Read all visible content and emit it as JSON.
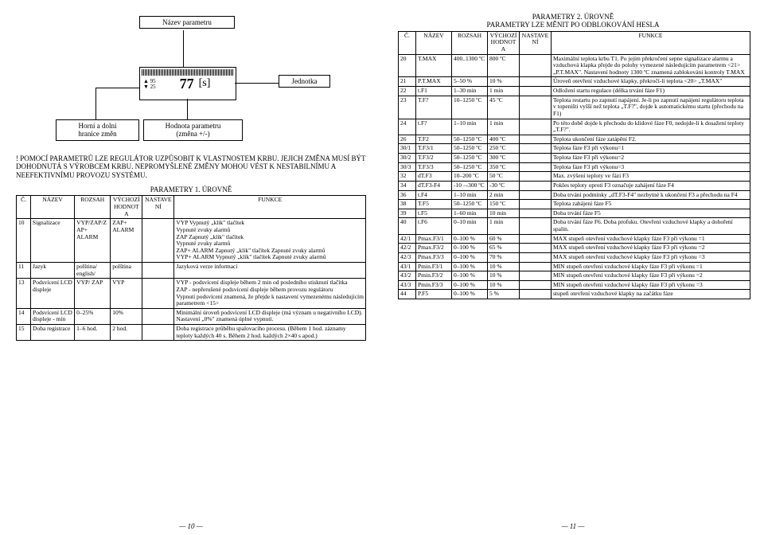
{
  "left": {
    "diagram": {
      "label_param_name": "Název parametru",
      "label_unit": "Jednotka",
      "label_bounds": "Horní a dolní\nhranice změn",
      "label_value": "Hodnota parametru\n(změna +/-)",
      "lcd_value": "77",
      "lcd_unit": "[s]"
    },
    "warning": "! POMOCÍ PARAMETRŮ LZE REGULÁTOR UZPŮSOBIT K VLASTNOSTEM KRBU. JEJICH ZMĚNA MUSÍ BÝT DOHODNUTÁ S VÝROBCEM KRBU. NEPROMYŠLENÉ ZMĚNY MOHOU VÉST K NESTABILNÍMU A NEEFEKTIVNÍMU PROVOZU SYSTÉMU.",
    "title1": "PARAMETRY 1. ÚROVNĚ",
    "head": [
      "Č.",
      "NÁZEV",
      "ROZSAH",
      "VÝCHOZÍ HODNOTA",
      "NASTAVENÍ",
      "FUNKCE"
    ],
    "rows1": [
      [
        "10",
        "Signalizace",
        "VYP/ZAP/ZAP+ ALARM",
        "ZAP+ ALARM",
        "",
        "VYP    Vypnutý „klik\" tlačítek\n         Vypnuté zvuky alarmů\nZAP    Zapnutý „klik\" tlačítek\n         Vypnuté zvuky alarmů\nZAP+ ALARM  Zapnutý „klik\" tlačítek Zapnuté zvuky alarmů\nVYP+ ALARM  Vypnutý „klik\" tlačítek Zapnuté zvuky alarmů"
      ],
      [
        "11",
        "Jazyk",
        "polština/ english/",
        "polština",
        "",
        "Jazyková verze informací"
      ],
      [
        "13",
        "Podsvícení LCD displeje",
        "VYP/ ZAP",
        "VYP",
        "",
        "VYP - podsvícení displeje během 2 min od posledního stisknutí tlačítka\nZAP - nepřerušené podsvícení displeje během provozu regulátoru\nVypnutí podsvícení znamená, že přejde k nastavení vymezenému následujícím parametrem <15>"
      ],
      [
        "14",
        "Podsvícení LCD displeje - min",
        "0–25%",
        "10%",
        "",
        "Minimální úroveň podsvícení LCD displeje (má význam u negativního LCD). Nastavení „0%\" znamená úplné vypnutí."
      ],
      [
        "15",
        "Doba registrace",
        "1–6 hod.",
        "2 hod.",
        "",
        "Doba registrace průběhu spalovacího procesu. (Během 1 hod. záznamy teploty každých 40 s. Během 2 hod. každých 2×40 s apod.)"
      ]
    ],
    "page_num": "10"
  },
  "right": {
    "title_top": "PARAMETRY 2. ÚROVNĚ\nPARAMETRY LZE MĚNIT PO ODBLOKOVÁNÍ HESLA",
    "head": [
      "Č.",
      "NÁZEV",
      "ROZSAH",
      "VÝCHOZÍ HODNOTA",
      "NASTAVENÍ",
      "FUNKCE"
    ],
    "rows2": [
      [
        "20",
        "T.MAX",
        "400..1300 ºC",
        "800 ºC",
        "",
        "Maximální teplota krbu T1. Po jejím překročení sepne signalizace alarmu a vzduchová klapka přejde do polohy vymezené následujícím parametrem <21> „P.T.MAX\". Nastavení hodnoty 1300 ºC znamená zablokování kontroly T.MAX"
      ],
      [
        "21",
        "P.T.MAX",
        "5–50 %",
        "10 %",
        "",
        "Úroveň otevření vzduchové klapky, překročí-li teplota <20> „T.MAX\""
      ],
      [
        "22",
        "t.F1",
        "1–30 min",
        "1 min",
        "",
        "Odložení startu regulace (délka trvání fáze F1)"
      ],
      [
        "23",
        "T.F?",
        "10–1250 ºC",
        "45 ºC",
        "",
        "Teplota restartu po zapnutí napájení. Je-li po zapnutí napájení regulátoru teplota v topeništi vyšší než teplota „T.F?\", dojde k automatickému startu (přechodu na F1)"
      ],
      [
        "24",
        "t.F?",
        "1–10 min",
        "1 min",
        "",
        "Po této době dojde k přechodu do klidové fáze F0, nedojde-li k dosažení teploty „T.F?\"."
      ],
      [
        "26",
        "T.F2",
        "50–1250 ºC",
        "400 ºC",
        "",
        "Teplota ukončení fáze zatápění F2."
      ],
      [
        "30/1",
        "T.F3/1",
        "50–1250 ºC",
        "250 ºC",
        "",
        "Teplota fáze F3 při výkonu=1"
      ],
      [
        "30/2",
        "T.F3/2",
        "50–1250 ºC",
        "300 ºC",
        "",
        "Teplota fáze F3 při výkonu=2"
      ],
      [
        "30/3",
        "T.F3/3",
        "50–1250 ºC",
        "350 ºC",
        "",
        "Teplota fáze F3 při výkonu=3"
      ],
      [
        "32",
        "dT.F3",
        "10–200 ºC",
        "50 ºC",
        "",
        "Max. zvýšení teploty ve fázi F3"
      ],
      [
        "34",
        "dT.F3-F4",
        "-10 –-300 ºC",
        "-30 ºC",
        "",
        "Pokles teploty oproti F3 označuje zahájení fáze F4"
      ],
      [
        "36",
        "t.F4",
        "1–10 min",
        "2 min",
        "",
        "Doba trvání podmínky „dT.F3-F4\" nezbytné k ukončení F3 a přechodu na F4"
      ],
      [
        "38",
        "T.F5",
        "50–1250 ºC",
        "150 ºC",
        "",
        "Teplota zahájení fáze F5"
      ],
      [
        "39",
        "t.F5",
        "1–60 min",
        "10 min",
        "",
        "Doba trvání fáze F5"
      ],
      [
        "40",
        "t.F6",
        "0–10 min",
        "1 min",
        "",
        "Doba trvání fáze F6. Doba profuku. Otevření vzduchové klapky a dohoření spalin."
      ],
      [
        "42/1",
        "Pmax.F3/1",
        "0–100 %",
        "60 %",
        "",
        "MAX stupeň otevření vzduchové klapky fáze F3 při výkonu =1"
      ],
      [
        "42/2",
        "Pmax.F3/2",
        "0–100 %",
        "65 %",
        "",
        "MAX stupeň otevření vzduchové klapky fáze F3 při výkonu =2"
      ],
      [
        "42/3",
        "Pmax.F3/3",
        "0–100 %",
        "70 %",
        "",
        "MAX stupeň otevření vzduchové klapky fáze F3 při výkonu =3"
      ],
      [
        "43/1",
        "Pmin.F3/1",
        "0–100 %",
        "10 %",
        "",
        "MIN stupeň otevření vzduchové klapky fáze F3 při výkonu =1"
      ],
      [
        "43/2",
        "Pmin.F3/2",
        "0–100 %",
        "10 %",
        "",
        "MIN stupeň otevření vzduchové klapky fáze F3 při výkonu =2"
      ],
      [
        "43/3",
        "Pmin.F3/3",
        "0–100 %",
        "10 %",
        "",
        "MIN stupeň otevření vzduchové klapky fáze F3 při výkonu =3"
      ],
      [
        "44",
        "P.F5",
        "0–100 %",
        "5 %",
        "",
        "stupeň otevření vzduchové klapky na začátku fáze"
      ]
    ],
    "page_num": "11"
  }
}
